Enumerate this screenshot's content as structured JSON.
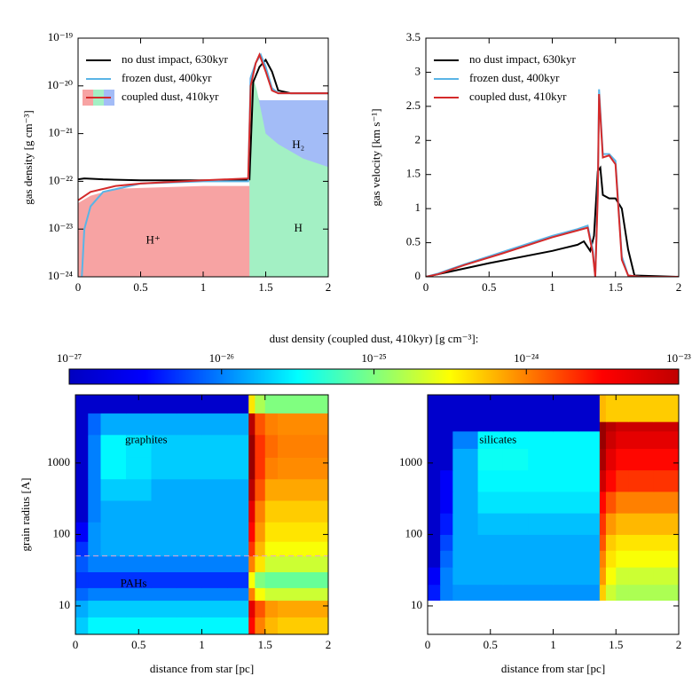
{
  "chart_data": [
    {
      "type": "line",
      "yscale": "log",
      "xlim": [
        0,
        2
      ],
      "xticks": [
        0,
        0.5,
        1,
        1.5,
        2
      ],
      "ylim": [
        1e-24,
        1e-19
      ],
      "yticks": [
        {
          "value": 1e-24,
          "label": "10⁻²⁴"
        },
        {
          "value": 1e-23,
          "label": "10⁻²³"
        },
        {
          "value": 1e-22,
          "label": "10⁻²²"
        },
        {
          "value": 1e-21,
          "label": "10⁻²¹"
        },
        {
          "value": 1e-20,
          "label": "10⁻²⁰"
        },
        {
          "value": 1e-19,
          "label": "10⁻¹⁹"
        }
      ],
      "ylabel": "gas density [g cm⁻³]",
      "legend": "upper left",
      "areas": [
        {
          "name": "H⁺",
          "color": "#f7a3a3",
          "x": [
            0,
            0.1,
            0.3,
            1.0,
            1.37
          ],
          "values": [
            3.5e-23,
            5e-23,
            7e-23,
            8e-23,
            8e-23
          ]
        },
        {
          "name": "H",
          "color": "#a3f0c4",
          "x": [
            1.37,
            1.4,
            1.43,
            1.5,
            1.6,
            1.8,
            2.0
          ],
          "values": [
            1e-20,
            1.5e-20,
            8e-21,
            1e-21,
            6e-22,
            3e-22,
            2e-22
          ]
        },
        {
          "name": "H₂",
          "color": "#a3bcf7",
          "x": [
            1.37,
            1.4,
            1.45,
            1.5,
            2.0
          ],
          "values": [
            1.5e-20,
            1e-20,
            5e-21,
            5e-21,
            5e-21
          ]
        }
      ],
      "series": [
        {
          "name": "no dust impact, 630kyr",
          "color": "#000000",
          "x": [
            0,
            0.05,
            0.2,
            0.5,
            1.0,
            1.3,
            1.37,
            1.4,
            1.45,
            1.5,
            1.55,
            1.6,
            1.7,
            2.0
          ],
          "values": [
            1.1e-22,
            1.15e-22,
            1.1e-22,
            1.05e-22,
            1.05e-22,
            1.05e-22,
            1.1e-22,
            1.2e-20,
            2.5e-20,
            3.5e-20,
            2e-20,
            8e-21,
            7e-21,
            7e-21
          ]
        },
        {
          "name": "frozen dust, 400kyr",
          "color": "#5ab4e6",
          "x": [
            0.03,
            0.05,
            0.1,
            0.2,
            0.5,
            1.0,
            1.36,
            1.38,
            1.42,
            1.46,
            1.5,
            1.55,
            1.6,
            1.7,
            2.0
          ],
          "values": [
            1e-24,
            1e-23,
            3e-23,
            6e-23,
            9e-23,
            1e-22,
            1e-22,
            1.5e-20,
            3e-20,
            4.5e-20,
            2.5e-20,
            9e-21,
            7e-21,
            7e-21,
            7e-21
          ]
        },
        {
          "name": "coupled dust, 410kyr",
          "color": "#d42a2a",
          "x": [
            0,
            0.1,
            0.3,
            0.5,
            1.0,
            1.36,
            1.38,
            1.42,
            1.45,
            1.5,
            1.55,
            1.6,
            2.0
          ],
          "values": [
            4e-23,
            6e-23,
            8e-23,
            9e-23,
            1.05e-22,
            1.15e-22,
            1e-20,
            3e-20,
            4.5e-20,
            2e-20,
            8e-21,
            7e-21,
            7e-21
          ]
        }
      ]
    },
    {
      "type": "line",
      "xlim": [
        0,
        2
      ],
      "xticks": [
        0,
        0.5,
        1,
        1.5,
        2
      ],
      "ylim": [
        0,
        3.5
      ],
      "yticks": [
        0,
        0.5,
        1,
        1.5,
        2,
        2.5,
        3,
        3.5
      ],
      "ylabel": "gas velocity [km s⁻¹]",
      "legend": "upper left",
      "series": [
        {
          "name": "no dust impact, 630kyr",
          "color": "#000000",
          "x": [
            0,
            0.2,
            0.5,
            1.0,
            1.2,
            1.25,
            1.3,
            1.33,
            1.36,
            1.38,
            1.4,
            1.45,
            1.5,
            1.55,
            1.6,
            1.65,
            2
          ],
          "values": [
            0,
            0.08,
            0.2,
            0.38,
            0.47,
            0.52,
            0.38,
            0.6,
            1.55,
            1.6,
            1.2,
            1.15,
            1.15,
            1.0,
            0.4,
            0.02,
            0
          ]
        },
        {
          "name": "frozen dust, 400kyr",
          "color": "#5ab4e6",
          "x": [
            0,
            0.1,
            0.3,
            0.6,
            1.0,
            1.2,
            1.28,
            1.32,
            1.34,
            1.36,
            1.37,
            1.4,
            1.45,
            1.5,
            1.55,
            1.6,
            1.7,
            2
          ],
          "values": [
            0,
            0.05,
            0.18,
            0.36,
            0.6,
            0.7,
            0.75,
            0.4,
            0,
            1.3,
            2.75,
            1.8,
            1.8,
            1.7,
            0.3,
            0.02,
            0,
            0
          ]
        },
        {
          "name": "coupled dust, 410kyr",
          "color": "#d42a2a",
          "x": [
            0,
            0.1,
            0.3,
            0.6,
            1.0,
            1.2,
            1.28,
            1.32,
            1.34,
            1.36,
            1.37,
            1.4,
            1.45,
            1.5,
            1.55,
            1.6,
            1.7,
            2
          ],
          "values": [
            0,
            0.04,
            0.17,
            0.34,
            0.58,
            0.68,
            0.72,
            0.35,
            0,
            1.2,
            2.68,
            1.75,
            1.78,
            1.65,
            0.25,
            0.02,
            0,
            0
          ]
        }
      ]
    },
    {
      "type": "heatmap",
      "yscale": "log",
      "xlim": [
        0,
        2
      ],
      "xticks": [
        0,
        0.5,
        1,
        1.5,
        2
      ],
      "ylim": [
        4,
        9000
      ],
      "yticks": [
        10,
        100,
        1000
      ],
      "xlabel": "distance from star [pc]",
      "ylabel": "grain radius [A]",
      "labels": [
        "graphites",
        "PAHs"
      ],
      "hlines": [
        50
      ],
      "x_edges": [
        0,
        0.1,
        0.2,
        0.4,
        0.6,
        0.8,
        1.0,
        1.2,
        1.37,
        1.42,
        1.5,
        1.6,
        1.8,
        2.0
      ],
      "y_edges": [
        4,
        7,
        12,
        18,
        30,
        50,
        80,
        150,
        300,
        600,
        1200,
        2500,
        5000,
        9000
      ],
      "values": [
        [
          2e-26,
          3e-26,
          3e-26,
          3e-26,
          3e-26,
          3e-26,
          3e-26,
          3e-26,
          3e-24,
          1e-24,
          6e-25,
          5e-25,
          5e-25
        ],
        [
          1.5e-26,
          2e-26,
          2e-26,
          2e-26,
          2e-26,
          2e-26,
          2e-26,
          2e-26,
          4e-24,
          1.5e-24,
          8e-25,
          7e-25,
          7e-25
        ],
        [
          8e-27,
          1e-26,
          1e-26,
          1e-26,
          1e-26,
          1e-26,
          1e-26,
          1e-26,
          1e-24,
          3e-25,
          2e-25,
          2e-25,
          2e-25
        ],
        [
          5e-27,
          5e-27,
          5e-27,
          5e-27,
          5e-27,
          5e-27,
          5e-27,
          5e-27,
          3e-25,
          1e-25,
          8e-26,
          8e-26,
          8e-26
        ],
        [
          7e-27,
          1e-26,
          1e-26,
          1e-26,
          1e-26,
          1e-26,
          1e-26,
          1e-26,
          1e-24,
          4e-25,
          2e-25,
          2e-25,
          2e-25
        ],
        [
          5e-27,
          1.2e-26,
          1.5e-26,
          1.5e-26,
          1.5e-26,
          1.5e-26,
          1.5e-26,
          1.5e-26,
          2e-24,
          6e-25,
          3e-25,
          3e-25,
          3e-25
        ],
        [
          3e-27,
          1.2e-26,
          1.5e-26,
          1.5e-26,
          1.5e-26,
          1.5e-26,
          1.5e-26,
          1.5e-26,
          3e-24,
          8e-25,
          4e-25,
          4e-25,
          4e-25
        ],
        [
          2e-27,
          1e-26,
          1.5e-26,
          1.5e-26,
          1.5e-26,
          1.5e-26,
          1.5e-26,
          1.5e-26,
          4e-24,
          1e-24,
          5e-25,
          5e-25,
          5e-25
        ],
        [
          2e-27,
          1e-26,
          2e-26,
          2e-26,
          1.5e-26,
          1.5e-26,
          1.5e-26,
          1.5e-26,
          6e-24,
          1.5e-24,
          7e-25,
          7e-25,
          7e-25
        ],
        [
          2e-27,
          1e-26,
          3e-26,
          2.5e-26,
          2e-26,
          2e-26,
          2e-26,
          2e-26,
          8e-24,
          2e-24,
          1e-24,
          9e-25,
          9e-25
        ],
        [
          2e-27,
          1e-26,
          3e-26,
          2.5e-26,
          2e-26,
          2e-26,
          2e-26,
          2e-26,
          8e-24,
          2e-24,
          1.2e-24,
          1e-24,
          1e-24
        ],
        [
          2e-27,
          8e-27,
          1.5e-26,
          1.5e-26,
          1.5e-26,
          1.5e-26,
          1.5e-26,
          1.5e-26,
          6e-24,
          1.5e-24,
          1e-24,
          9e-25,
          9e-25
        ],
        [
          2e-27,
          2e-27,
          2e-27,
          2e-27,
          2e-27,
          2e-27,
          2e-27,
          2e-27,
          4e-25,
          1.5e-25,
          1e-25,
          1e-25,
          1e-25
        ]
      ]
    },
    {
      "type": "heatmap",
      "yscale": "log",
      "xlim": [
        0,
        2
      ],
      "xticks": [
        0,
        0.5,
        1,
        1.5,
        2
      ],
      "ylim": [
        4,
        9000
      ],
      "yticks": [
        10,
        100,
        1000
      ],
      "xlabel": "distance from star [pc]",
      "labels": [
        "silicates"
      ],
      "x_edges": [
        0,
        0.1,
        0.2,
        0.4,
        0.6,
        0.8,
        1.0,
        1.2,
        1.37,
        1.42,
        1.5,
        1.6,
        1.8,
        2.0
      ],
      "y_edges": [
        12,
        20,
        35,
        60,
        100,
        200,
        400,
        800,
        1600,
        2800,
        3800,
        9000
      ],
      "values": [
        [
          4e-27,
          1e-26,
          1.2e-26,
          1.2e-26,
          1.2e-26,
          1.2e-26,
          1.2e-26,
          1.2e-26,
          5e-25,
          2e-25,
          1.5e-25,
          1.5e-25,
          1.5e-25
        ],
        [
          3e-27,
          1e-26,
          1.5e-26,
          1.5e-26,
          1.5e-26,
          1.5e-26,
          1.5e-26,
          1.5e-26,
          8e-25,
          3e-25,
          2e-25,
          2e-25,
          2e-25
        ],
        [
          2e-27,
          8e-27,
          1.5e-26,
          1.5e-26,
          1.5e-26,
          1.5e-26,
          1.5e-26,
          1.5e-26,
          1e-24,
          4e-25,
          3e-25,
          3e-25,
          3e-25
        ],
        [
          2e-27,
          6e-27,
          1.5e-26,
          1.5e-26,
          1.5e-26,
          1.5e-26,
          1.5e-26,
          1.5e-26,
          1.5e-24,
          5e-25,
          4e-25,
          4e-25,
          4e-25
        ],
        [
          2e-27,
          4e-27,
          1.5e-26,
          1.8e-26,
          1.8e-26,
          1.8e-26,
          1.8e-26,
          1.8e-26,
          2e-24,
          8e-25,
          6e-25,
          6e-25,
          6e-25
        ],
        [
          2e-27,
          3e-27,
          1.5e-26,
          2.5e-26,
          2.5e-26,
          2.5e-26,
          2.5e-26,
          2.5e-26,
          3e-24,
          1.5e-24,
          1e-24,
          1e-24,
          1e-24
        ],
        [
          2e-27,
          3e-27,
          1.5e-26,
          3e-26,
          3e-26,
          3e-26,
          3e-26,
          3e-26,
          5e-24,
          3e-24,
          2e-24,
          2e-24,
          2e-24
        ],
        [
          2e-27,
          2e-27,
          1.5e-26,
          3.5e-26,
          3.5e-26,
          3e-26,
          3e-26,
          3e-26,
          7e-24,
          4e-24,
          3e-24,
          3e-24,
          3e-24
        ],
        [
          2e-27,
          2e-27,
          1e-26,
          3e-26,
          3e-26,
          3e-26,
          3e-26,
          3e-26,
          8e-24,
          5e-24,
          4e-24,
          4e-24,
          4e-24
        ],
        [
          2e-27,
          2e-27,
          2e-27,
          2e-27,
          2e-27,
          2e-27,
          2e-27,
          2e-27,
          8e-24,
          6e-24,
          5e-24,
          5e-24,
          5e-24
        ],
        [
          2e-27,
          2e-27,
          2e-27,
          2e-27,
          2e-27,
          2e-27,
          2e-27,
          2e-27,
          6e-25,
          5e-25,
          5e-25,
          5e-25,
          5e-25
        ]
      ]
    }
  ],
  "colorbar": {
    "label": "dust density (coupled dust, 410kyr) [g cm⁻³]:",
    "colormap": "jet",
    "scale": "log",
    "lim": [
      1e-27,
      1e-23
    ],
    "ticks": [
      {
        "value": 1e-27,
        "label": "10⁻²⁷"
      },
      {
        "value": 1e-26,
        "label": "10⁻²⁶"
      },
      {
        "value": 1e-25,
        "label": "10⁻²⁵"
      },
      {
        "value": 1e-24,
        "label": "10⁻²⁴"
      },
      {
        "value": 1e-23,
        "label": "10⁻²³"
      }
    ]
  }
}
